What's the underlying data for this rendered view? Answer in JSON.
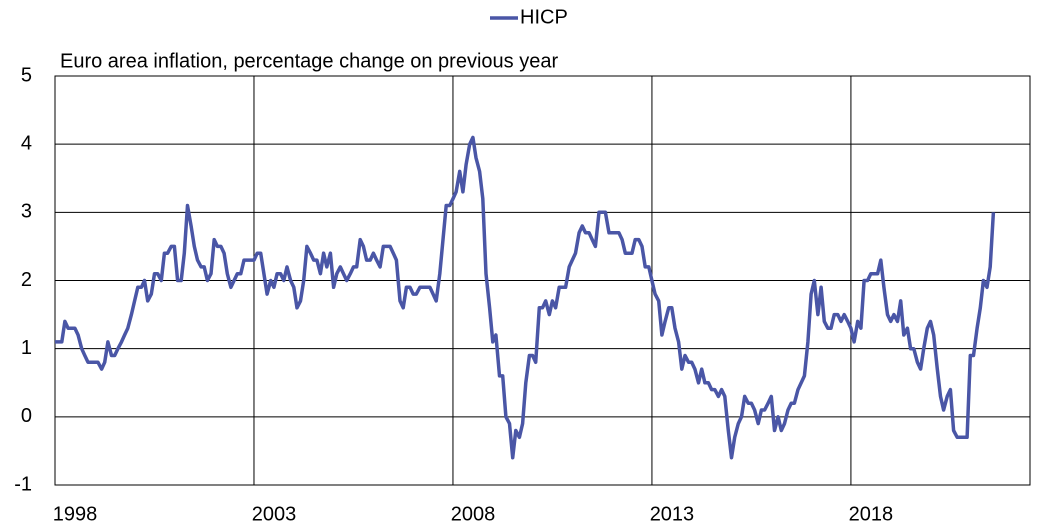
{
  "chart_data": {
    "type": "line",
    "subtitle": "Euro area inflation, percentage change on previous year",
    "x": [
      1998.0,
      1998.08,
      1998.17,
      1998.25,
      1998.33,
      1998.42,
      1998.5,
      1998.58,
      1998.67,
      1998.75,
      1998.83,
      1998.92,
      1999.0,
      1999.08,
      1999.17,
      1999.25,
      1999.33,
      1999.42,
      1999.5,
      1999.58,
      1999.67,
      1999.75,
      1999.83,
      1999.92,
      2000.0,
      2000.08,
      2000.17,
      2000.25,
      2000.33,
      2000.42,
      2000.5,
      2000.58,
      2000.67,
      2000.75,
      2000.83,
      2000.92,
      2001.0,
      2001.08,
      2001.17,
      2001.25,
      2001.33,
      2001.42,
      2001.5,
      2001.58,
      2001.67,
      2001.75,
      2001.83,
      2001.92,
      2002.0,
      2002.08,
      2002.17,
      2002.25,
      2002.33,
      2002.42,
      2002.5,
      2002.58,
      2002.67,
      2002.75,
      2002.83,
      2002.92,
      2003.0,
      2003.08,
      2003.17,
      2003.25,
      2003.33,
      2003.42,
      2003.5,
      2003.58,
      2003.67,
      2003.75,
      2003.83,
      2003.92,
      2004.0,
      2004.08,
      2004.17,
      2004.25,
      2004.33,
      2004.42,
      2004.5,
      2004.58,
      2004.67,
      2004.75,
      2004.83,
      2004.92,
      2005.0,
      2005.08,
      2005.17,
      2005.25,
      2005.33,
      2005.42,
      2005.5,
      2005.58,
      2005.67,
      2005.75,
      2005.83,
      2005.92,
      2006.0,
      2006.08,
      2006.17,
      2006.25,
      2006.33,
      2006.42,
      2006.5,
      2006.58,
      2006.67,
      2006.75,
      2006.83,
      2006.92,
      2007.0,
      2007.08,
      2007.17,
      2007.25,
      2007.33,
      2007.42,
      2007.5,
      2007.58,
      2007.67,
      2007.75,
      2007.83,
      2007.92,
      2008.0,
      2008.08,
      2008.17,
      2008.25,
      2008.33,
      2008.42,
      2008.5,
      2008.58,
      2008.67,
      2008.75,
      2008.83,
      2008.92,
      2009.0,
      2009.08,
      2009.17,
      2009.25,
      2009.33,
      2009.42,
      2009.5,
      2009.58,
      2009.67,
      2009.75,
      2009.83,
      2009.92,
      2010.0,
      2010.08,
      2010.17,
      2010.25,
      2010.33,
      2010.42,
      2010.5,
      2010.58,
      2010.67,
      2010.75,
      2010.83,
      2010.92,
      2011.0,
      2011.08,
      2011.17,
      2011.25,
      2011.33,
      2011.42,
      2011.5,
      2011.58,
      2011.67,
      2011.75,
      2011.83,
      2011.92,
      2012.0,
      2012.08,
      2012.17,
      2012.25,
      2012.33,
      2012.42,
      2012.5,
      2012.58,
      2012.67,
      2012.75,
      2012.83,
      2012.92,
      2013.0,
      2013.08,
      2013.17,
      2013.25,
      2013.33,
      2013.42,
      2013.5,
      2013.58,
      2013.67,
      2013.75,
      2013.83,
      2013.92,
      2014.0,
      2014.08,
      2014.17,
      2014.25,
      2014.33,
      2014.42,
      2014.5,
      2014.58,
      2014.67,
      2014.75,
      2014.83,
      2014.92,
      2015.0,
      2015.08,
      2015.17,
      2015.25,
      2015.33,
      2015.42,
      2015.5,
      2015.58,
      2015.67,
      2015.75,
      2015.83,
      2015.92,
      2016.0,
      2016.08,
      2016.17,
      2016.25,
      2016.33,
      2016.42,
      2016.5,
      2016.58,
      2016.67,
      2016.75,
      2016.83,
      2016.92,
      2017.0,
      2017.08,
      2017.17,
      2017.25,
      2017.33,
      2017.42,
      2017.5,
      2017.58,
      2017.67,
      2017.75,
      2017.83,
      2017.92,
      2018.0,
      2018.08,
      2018.17,
      2018.25,
      2018.33,
      2018.42,
      2018.5,
      2018.58,
      2018.67,
      2018.75,
      2018.83,
      2018.92,
      2019.0,
      2019.08,
      2019.17,
      2019.25,
      2019.33,
      2019.42,
      2019.5,
      2019.58,
      2019.67,
      2019.75,
      2019.83,
      2019.92,
      2020.0,
      2020.08,
      2020.17,
      2020.25,
      2020.33,
      2020.42,
      2020.5,
      2020.58,
      2020.67,
      2020.75,
      2020.83,
      2020.92,
      2021.0,
      2021.08,
      2021.17,
      2021.25,
      2021.33,
      2021.42,
      2021.5,
      2021.58
    ],
    "series": [
      {
        "name": "HICP",
        "color": "#4a56a6",
        "values": [
          1.1,
          1.1,
          1.1,
          1.4,
          1.3,
          1.3,
          1.3,
          1.2,
          1.0,
          0.9,
          0.8,
          0.8,
          0.8,
          0.8,
          0.7,
          0.8,
          1.1,
          0.9,
          0.9,
          1.0,
          1.1,
          1.2,
          1.3,
          1.5,
          1.7,
          1.9,
          1.9,
          2.0,
          1.7,
          1.8,
          2.1,
          2.1,
          2.0,
          2.4,
          2.4,
          2.5,
          2.5,
          2.0,
          2.0,
          2.4,
          3.1,
          2.8,
          2.5,
          2.3,
          2.2,
          2.2,
          2.0,
          2.1,
          2.6,
          2.5,
          2.5,
          2.4,
          2.1,
          1.9,
          2.0,
          2.1,
          2.1,
          2.3,
          2.3,
          2.3,
          2.3,
          2.4,
          2.4,
          2.1,
          1.8,
          2.0,
          1.9,
          2.1,
          2.1,
          2.0,
          2.2,
          2.0,
          1.9,
          1.6,
          1.7,
          2.0,
          2.5,
          2.4,
          2.3,
          2.3,
          2.1,
          2.4,
          2.2,
          2.4,
          1.9,
          2.1,
          2.2,
          2.1,
          2.0,
          2.1,
          2.2,
          2.2,
          2.6,
          2.5,
          2.3,
          2.3,
          2.4,
          2.3,
          2.2,
          2.5,
          2.5,
          2.5,
          2.4,
          2.3,
          1.7,
          1.6,
          1.9,
          1.9,
          1.8,
          1.8,
          1.9,
          1.9,
          1.9,
          1.9,
          1.8,
          1.7,
          2.1,
          2.6,
          3.1,
          3.1,
          3.2,
          3.3,
          3.6,
          3.3,
          3.7,
          4.0,
          4.1,
          3.8,
          3.6,
          3.2,
          2.1,
          1.6,
          1.1,
          1.2,
          0.6,
          0.6,
          0.0,
          -0.1,
          -0.6,
          -0.2,
          -0.3,
          -0.1,
          0.5,
          0.9,
          0.9,
          0.8,
          1.6,
          1.6,
          1.7,
          1.5,
          1.7,
          1.6,
          1.9,
          1.9,
          1.9,
          2.2,
          2.3,
          2.4,
          2.7,
          2.8,
          2.7,
          2.7,
          2.6,
          2.5,
          3.0,
          3.0,
          3.0,
          2.7,
          2.7,
          2.7,
          2.7,
          2.6,
          2.4,
          2.4,
          2.4,
          2.6,
          2.6,
          2.5,
          2.2,
          2.2,
          2.0,
          1.8,
          1.7,
          1.2,
          1.4,
          1.6,
          1.6,
          1.3,
          1.1,
          0.7,
          0.9,
          0.8,
          0.8,
          0.7,
          0.5,
          0.7,
          0.5,
          0.5,
          0.4,
          0.4,
          0.3,
          0.4,
          0.3,
          -0.2,
          -0.6,
          -0.3,
          -0.1,
          0.0,
          0.3,
          0.2,
          0.2,
          0.1,
          -0.1,
          0.1,
          0.1,
          0.2,
          0.3,
          -0.2,
          0.0,
          -0.2,
          -0.1,
          0.1,
          0.2,
          0.2,
          0.4,
          0.5,
          0.6,
          1.1,
          1.8,
          2.0,
          1.5,
          1.9,
          1.4,
          1.3,
          1.3,
          1.5,
          1.5,
          1.4,
          1.5,
          1.4,
          1.3,
          1.1,
          1.4,
          1.3,
          2.0,
          2.0,
          2.1,
          2.1,
          2.1,
          2.3,
          1.9,
          1.5,
          1.4,
          1.5,
          1.4,
          1.7,
          1.2,
          1.3,
          1.0,
          1.0,
          0.8,
          0.7,
          1.0,
          1.3,
          1.4,
          1.2,
          0.7,
          0.3,
          0.1,
          0.3,
          0.4,
          -0.2,
          -0.3,
          -0.3,
          -0.3,
          -0.3,
          0.9,
          0.9,
          1.3,
          1.6,
          2.0,
          1.9,
          2.2,
          3.0
        ]
      }
    ],
    "xlim": [
      1998,
      2022.5
    ],
    "xticks": [
      1998,
      2003,
      2008,
      2013,
      2018
    ],
    "ylim": [
      -1,
      5
    ],
    "yticks": [
      -1,
      0,
      1,
      2,
      3,
      4,
      5
    ],
    "grid": true,
    "legend": "top"
  }
}
